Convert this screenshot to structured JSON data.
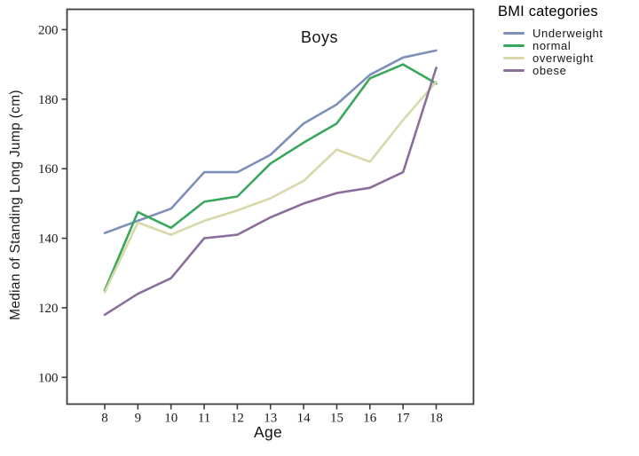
{
  "page": {
    "background": "#ffffff"
  },
  "chart_data": {
    "type": "line",
    "title": "Boys",
    "xlabel": "Age",
    "ylabel": "Median of Standing Long Jump (cm)",
    "x": [
      8,
      9,
      10,
      11,
      12,
      13,
      14,
      15,
      16,
      17,
      18
    ],
    "yticks": [
      100,
      120,
      140,
      160,
      180,
      200
    ],
    "ylim": [
      96,
      206
    ],
    "grid": false,
    "legend_title": "BMI categories",
    "legend_position": "top-right-outside",
    "axis_color": "#3f3f3f",
    "series": [
      {
        "name": "Underweight",
        "color": "#7e8fba",
        "values": [
          141.5,
          145,
          148.5,
          159,
          159,
          164,
          173,
          178.5,
          187,
          192,
          194
        ]
      },
      {
        "name": "normal",
        "color": "#3aa85c",
        "values": [
          125,
          147.5,
          143,
          150.5,
          152,
          161.5,
          167.5,
          173,
          186,
          190,
          184.5
        ]
      },
      {
        "name": "overweight",
        "color": "#d8d8aa",
        "values": [
          124.5,
          144.5,
          141,
          145,
          148,
          151.5,
          156.5,
          165.5,
          162,
          174,
          185
        ]
      },
      {
        "name": "obese",
        "color": "#8a6f9b",
        "values": [
          118,
          124,
          128.5,
          140,
          141,
          146,
          150,
          153,
          154.5,
          159,
          189
        ]
      }
    ]
  }
}
